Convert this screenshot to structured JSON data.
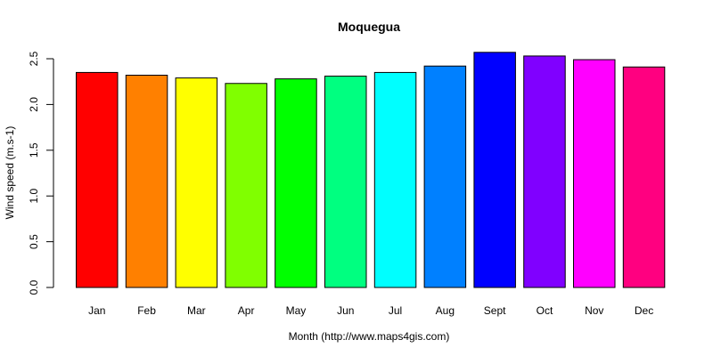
{
  "chart_data": {
    "type": "bar",
    "title": "Moquegua",
    "xlabel": "Month (http://www.maps4gis.com)",
    "ylabel": "Wind speed (m.s-1)",
    "ylim": [
      0,
      2.5
    ],
    "yticks": [
      "0.0",
      "0.5",
      "1.0",
      "1.5",
      "2.0",
      "2.5"
    ],
    "grid": false,
    "legend": null,
    "categories": [
      "Jan",
      "Feb",
      "Mar",
      "Apr",
      "May",
      "Jun",
      "Jul",
      "Aug",
      "Sept",
      "Oct",
      "Nov",
      "Dec"
    ],
    "values": [
      2.35,
      2.32,
      2.29,
      2.23,
      2.28,
      2.31,
      2.35,
      2.42,
      2.57,
      2.53,
      2.49,
      2.41
    ],
    "colors": [
      "#ff0000",
      "#ff8000",
      "#ffff00",
      "#80ff00",
      "#00ff00",
      "#00ff80",
      "#00ffff",
      "#0080ff",
      "#0000ff",
      "#8000ff",
      "#ff00ff",
      "#ff0080"
    ]
  }
}
